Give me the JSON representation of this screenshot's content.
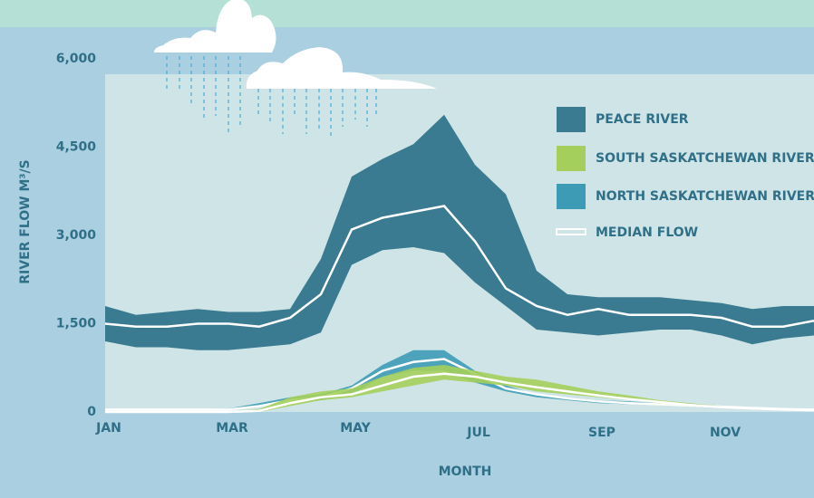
{
  "chart_data": {
    "type": "range-area",
    "x_label": "MONTH",
    "y_label": "RIVER FLOW M³/S",
    "categories": [
      "JAN",
      null,
      null,
      null,
      "MAR",
      null,
      null,
      null,
      "MAY",
      null,
      null,
      null,
      "JUL",
      null,
      null,
      null,
      "SEP",
      null,
      null,
      null,
      "NOV",
      null,
      null,
      null
    ],
    "ylim": [
      0,
      6000
    ],
    "yticks": [
      0,
      {
        "value": 1500,
        "label": "1,500"
      },
      {
        "value": 3000,
        "label": "3,000"
      },
      {
        "value": 4500,
        "label": "4,500"
      },
      {
        "value": 6000,
        "label": "6,000"
      }
    ],
    "median_label": "MEDIAN FLOW",
    "median_color": "#ffffff",
    "series": [
      {
        "name": "PEACE RIVER",
        "color": "#3a7b91",
        "high": [
          1800,
          1650,
          1700,
          1750,
          1700,
          1700,
          1750,
          2600,
          4000,
          4300,
          4550,
          5050,
          4200,
          3700,
          2400,
          2000,
          1950,
          1950,
          1950,
          1900,
          1850,
          1750,
          1800,
          1800
        ],
        "low": [
          1200,
          1100,
          1100,
          1050,
          1050,
          1100,
          1150,
          1350,
          2500,
          2750,
          2800,
          2700,
          2200,
          1800,
          1400,
          1350,
          1300,
          1350,
          1400,
          1400,
          1300,
          1150,
          1250,
          1300
        ],
        "median": [
          1500,
          1450,
          1450,
          1500,
          1500,
          1450,
          1600,
          2000,
          3100,
          3300,
          3400,
          3500,
          2900,
          2100,
          1800,
          1650,
          1750,
          1650,
          1650,
          1650,
          1600,
          1450,
          1450,
          1550
        ]
      },
      {
        "name": "SOUTH SASKATCHEWAN RIVER",
        "color": "#a4cf5c",
        "high": [
          0,
          0,
          0,
          0,
          0,
          50,
          250,
          350,
          400,
          600,
          750,
          800,
          700,
          600,
          550,
          450,
          350,
          280,
          200,
          150,
          100,
          70,
          50,
          30
        ],
        "low": [
          0,
          0,
          0,
          0,
          0,
          0,
          100,
          200,
          250,
          350,
          450,
          550,
          500,
          450,
          350,
          300,
          250,
          200,
          150,
          100,
          70,
          50,
          30,
          20
        ],
        "median": [
          0,
          0,
          0,
          0,
          0,
          20,
          150,
          250,
          300,
          450,
          600,
          650,
          600,
          500,
          420,
          350,
          280,
          220,
          170,
          120,
          80,
          60,
          40,
          30
        ]
      },
      {
        "name": "NORTH SASKATCHEWAN RIVER",
        "color": "#3d9bb6",
        "high": [
          50,
          50,
          50,
          50,
          60,
          150,
          250,
          300,
          450,
          800,
          1050,
          1050,
          700,
          450,
          300,
          250,
          200,
          180,
          150,
          120,
          100,
          80,
          60,
          50
        ],
        "low": [
          30,
          30,
          30,
          30,
          30,
          80,
          200,
          200,
          300,
          600,
          700,
          700,
          500,
          350,
          250,
          200,
          150,
          130,
          120,
          100,
          80,
          60,
          40,
          30
        ],
        "median": [
          40,
          40,
          40,
          40,
          40,
          100,
          200,
          250,
          400,
          700,
          850,
          900,
          650,
          400,
          300,
          230,
          180,
          150,
          130,
          110,
          90,
          70,
          50,
          40
        ]
      }
    ]
  }
}
